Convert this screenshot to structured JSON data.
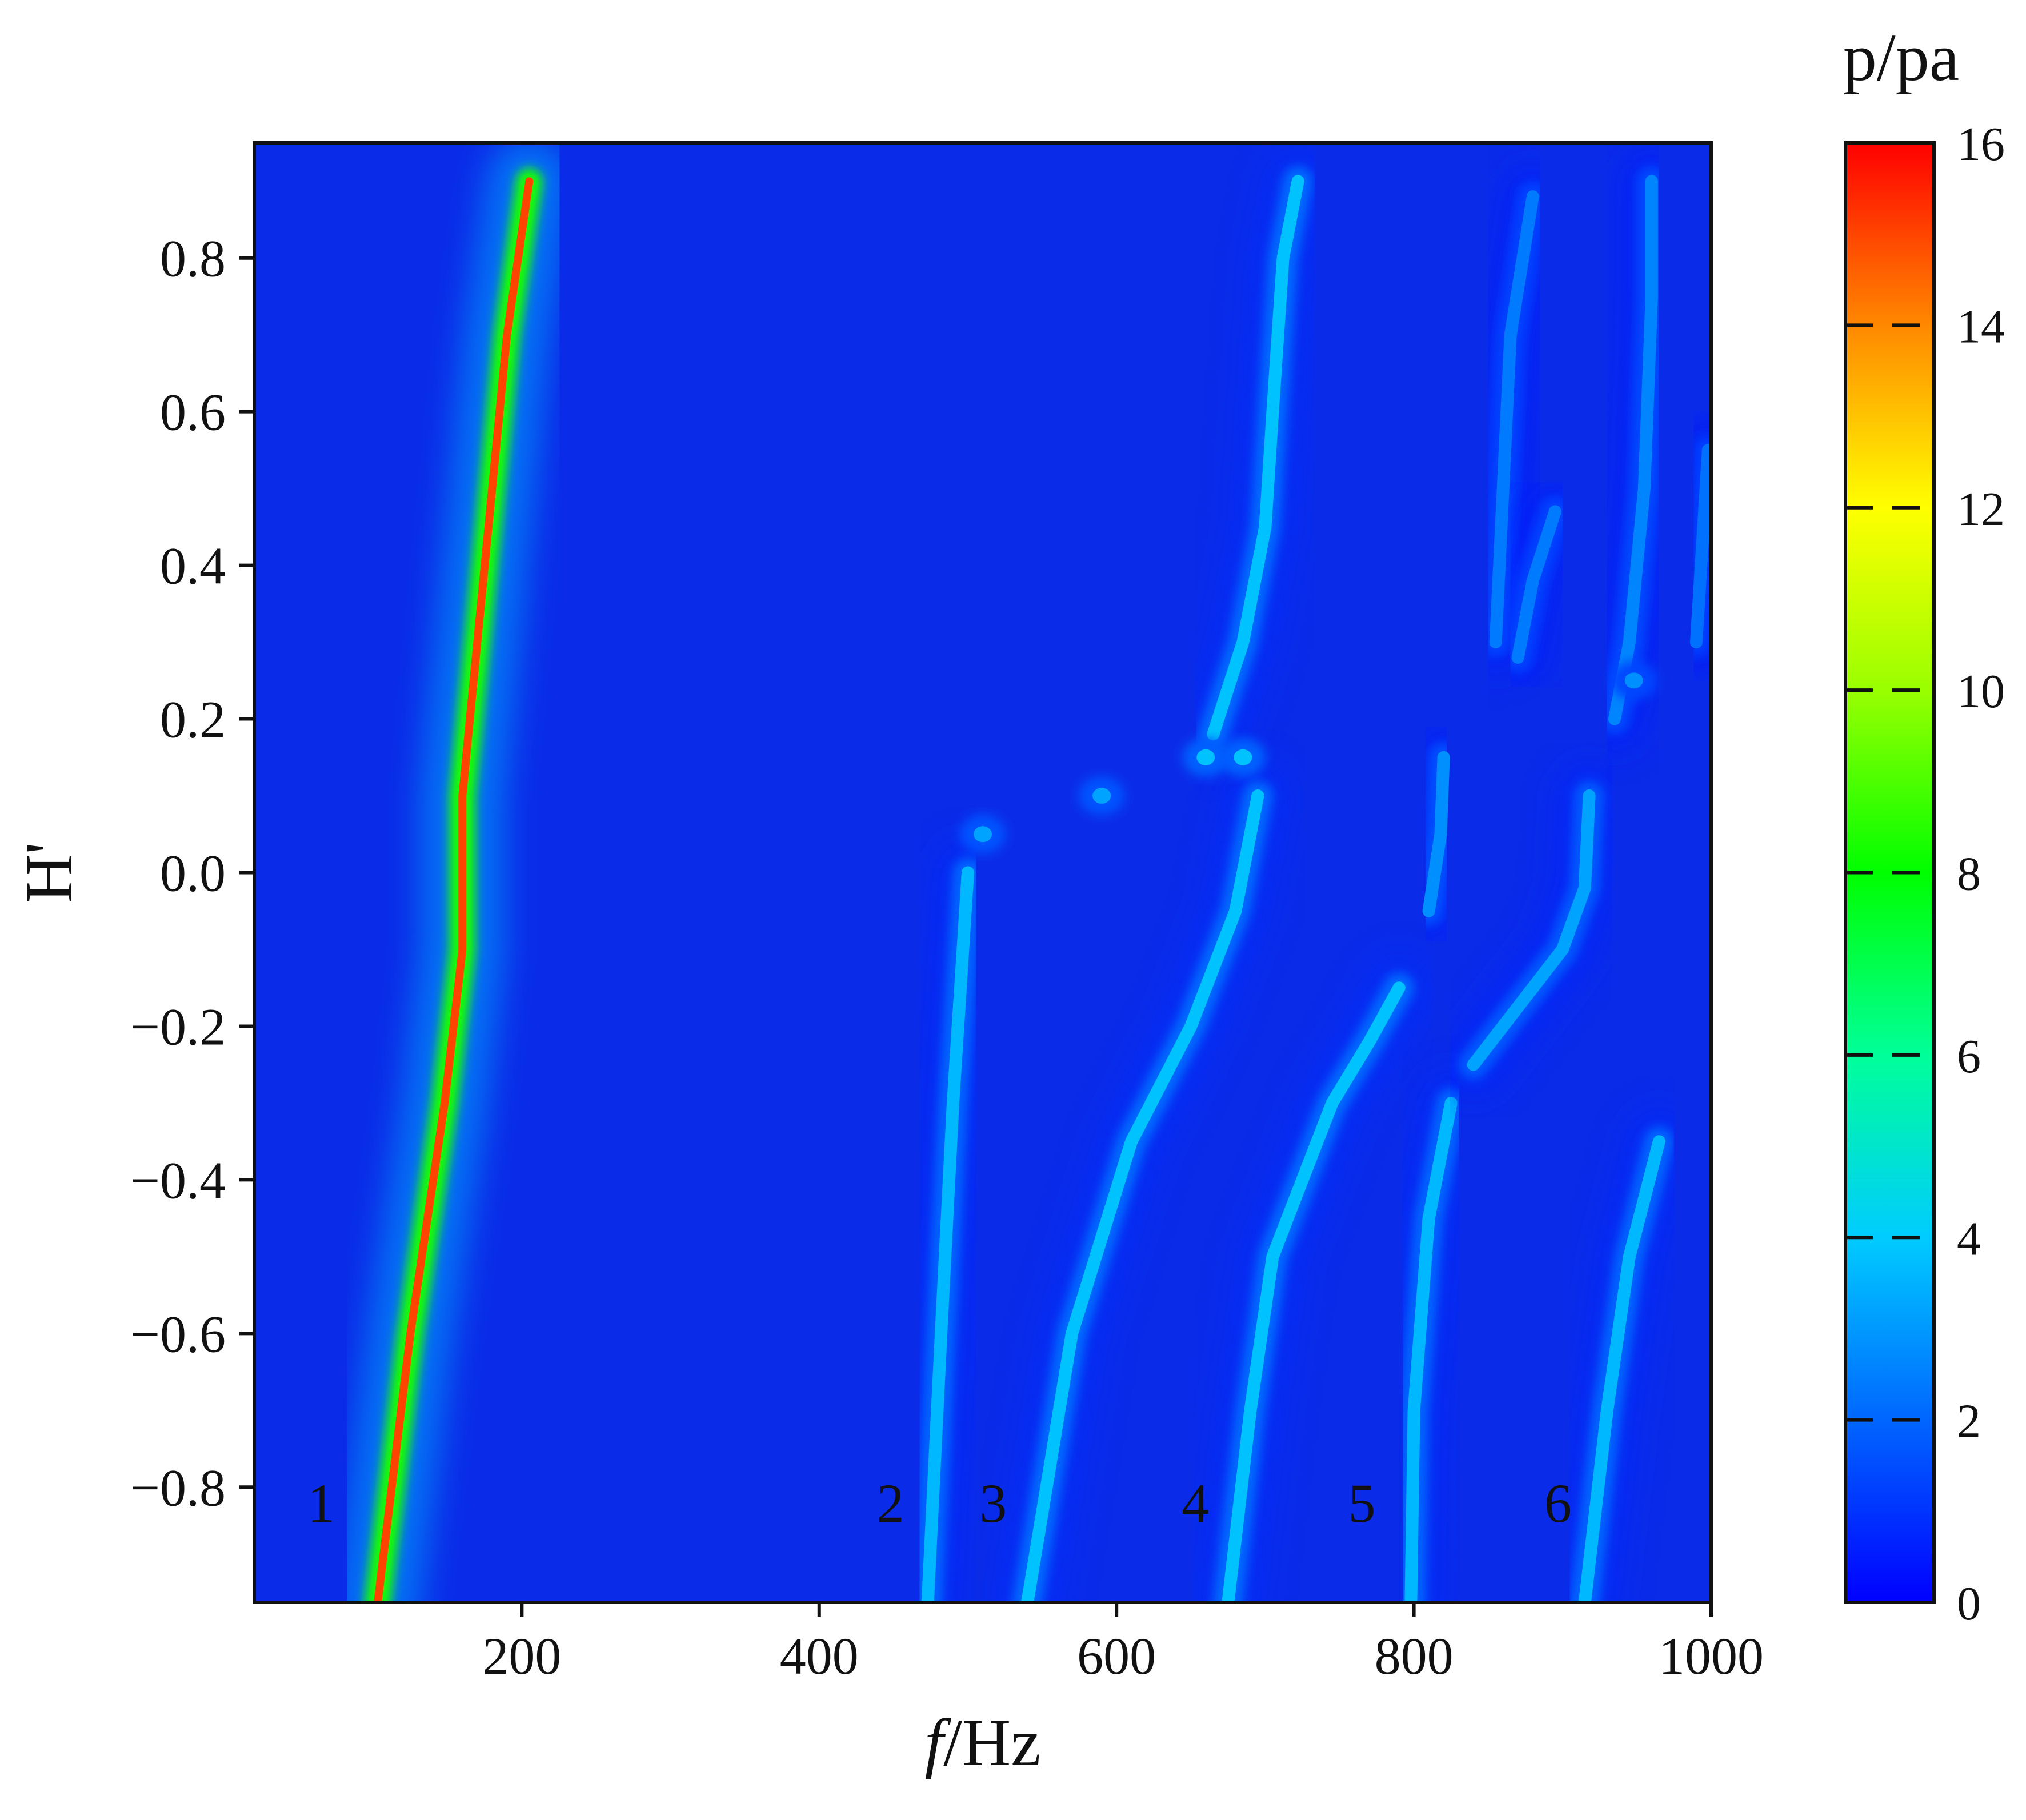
{
  "chart_data": {
    "type": "heatmap",
    "title": "",
    "xlabel_italic": "f",
    "xlabel_rest": "/Hz",
    "ylabel": "H'",
    "xlim": [
      20,
      1000
    ],
    "ylim": [
      -0.95,
      0.95
    ],
    "x_ticks": [
      200,
      400,
      600,
      800,
      1000
    ],
    "x_tick_labels": [
      "200",
      "400",
      "600",
      "800",
      "1000"
    ],
    "y_ticks": [
      0.8,
      0.6,
      0.4,
      0.2,
      0.0,
      -0.2,
      -0.4,
      -0.6,
      -0.8
    ],
    "y_tick_labels": [
      "0.8",
      "0.6",
      "0.4",
      "0.2",
      "0.0",
      "−0.2",
      "−0.4",
      "−0.6",
      "−0.8"
    ],
    "colorbar": {
      "title": "p/pa",
      "min": 0,
      "max": 16,
      "ticks": [
        0,
        2,
        4,
        6,
        8,
        10,
        12,
        14,
        16
      ],
      "tick_labels": [
        "0",
        "2",
        "4",
        "6",
        "8",
        "10",
        "12",
        "14",
        "16"
      ],
      "colors": [
        "#0000ff",
        "#0066ff",
        "#00ccff",
        "#00ff99",
        "#00ff00",
        "#99ff00",
        "#ffff00",
        "#ff8800",
        "#ff0000"
      ],
      "background": "#0a2ce8"
    },
    "mode_labels": [
      {
        "text": "1",
        "x": 65,
        "y": -0.82
      },
      {
        "text": "2",
        "x": 448,
        "y": -0.82
      },
      {
        "text": "3",
        "x": 517,
        "y": -0.82
      },
      {
        "text": "4",
        "x": 653,
        "y": -0.82
      },
      {
        "text": "5",
        "x": 765,
        "y": -0.82
      },
      {
        "text": "6",
        "x": 897,
        "y": -0.82
      }
    ],
    "ridges": [
      {
        "name": "mode-1-ridge",
        "peak": 15,
        "points": [
          [
            103,
            -0.95
          ],
          [
            125,
            -0.6
          ],
          [
            148,
            -0.3
          ],
          [
            160,
            -0.1
          ],
          [
            160,
            0.1
          ],
          [
            175,
            0.4
          ],
          [
            190,
            0.7
          ],
          [
            205,
            0.9
          ]
        ]
      },
      {
        "name": "mode-2-ridge",
        "peak": 3.6,
        "points": [
          [
            473,
            -0.95
          ],
          [
            482,
            -0.6
          ],
          [
            490,
            -0.3
          ],
          [
            500,
            0.0
          ]
        ]
      },
      {
        "name": "mode-3-ridge",
        "peak": 3.8,
        "points": [
          [
            540,
            -0.95
          ],
          [
            570,
            -0.6
          ],
          [
            610,
            -0.35
          ],
          [
            650,
            -0.2
          ],
          [
            680,
            -0.05
          ],
          [
            695,
            0.1
          ]
        ]
      },
      {
        "name": "mode-3-upper-ridge",
        "peak": 3.8,
        "points": [
          [
            665,
            0.18
          ],
          [
            685,
            0.3
          ],
          [
            700,
            0.45
          ],
          [
            705,
            0.6
          ],
          [
            712,
            0.8
          ],
          [
            722,
            0.9
          ]
        ]
      },
      {
        "name": "mode-4-ridge",
        "peak": 3.8,
        "points": [
          [
            675,
            -0.95
          ],
          [
            690,
            -0.7
          ],
          [
            705,
            -0.5
          ],
          [
            745,
            -0.3
          ],
          [
            770,
            -0.22
          ],
          [
            790,
            -0.15
          ]
        ]
      },
      {
        "name": "mode-5-ridge",
        "peak": 3.6,
        "points": [
          [
            798,
            -0.95
          ],
          [
            800,
            -0.7
          ],
          [
            810,
            -0.45
          ],
          [
            825,
            -0.3
          ]
        ]
      },
      {
        "name": "mode-5-upper-ridge",
        "peak": 2.8,
        "points": [
          [
            810,
            -0.05
          ],
          [
            818,
            0.05
          ],
          [
            820,
            0.15
          ]
        ]
      },
      {
        "name": "mode-5-branch-ridge",
        "peak": 3.2,
        "points": [
          [
            840,
            -0.25
          ],
          [
            860,
            -0.2
          ],
          [
            880,
            -0.15
          ],
          [
            900,
            -0.1
          ],
          [
            915,
            -0.02
          ],
          [
            918,
            0.1
          ]
        ]
      },
      {
        "name": "mode-6-ridge",
        "peak": 3.6,
        "points": [
          [
            915,
            -0.95
          ],
          [
            930,
            -0.7
          ],
          [
            945,
            -0.5
          ],
          [
            965,
            -0.35
          ]
        ]
      },
      {
        "name": "upper-right-ridge-a",
        "peak": 2.4,
        "points": [
          [
            855,
            0.3
          ],
          [
            860,
            0.5
          ],
          [
            865,
            0.7
          ],
          [
            880,
            0.88
          ]
        ]
      },
      {
        "name": "upper-right-ridge-b",
        "peak": 2.6,
        "points": [
          [
            935,
            0.2
          ],
          [
            945,
            0.3
          ],
          [
            955,
            0.5
          ],
          [
            960,
            0.75
          ],
          [
            960,
            0.9
          ]
        ]
      },
      {
        "name": "upper-right-ridge-c",
        "peak": 2.2,
        "points": [
          [
            990,
            0.3
          ],
          [
            998,
            0.55
          ]
        ]
      },
      {
        "name": "upper-right-ridge-d",
        "peak": 2.4,
        "points": [
          [
            870,
            0.28
          ],
          [
            880,
            0.38
          ],
          [
            895,
            0.47
          ]
        ]
      }
    ],
    "spots": [
      {
        "name": "spot-3-top",
        "x": 510,
        "y": 0.05,
        "peak": 3.2
      },
      {
        "name": "spot-3-mid",
        "x": 590,
        "y": 0.1,
        "peak": 3.2
      },
      {
        "name": "spot-3-join",
        "x": 660,
        "y": 0.15,
        "peak": 3.8
      },
      {
        "name": "spot-3-knee",
        "x": 685,
        "y": 0.15,
        "peak": 3.8
      },
      {
        "name": "spot-6-top",
        "x": 948,
        "y": 0.25,
        "peak": 2.8
      }
    ]
  }
}
